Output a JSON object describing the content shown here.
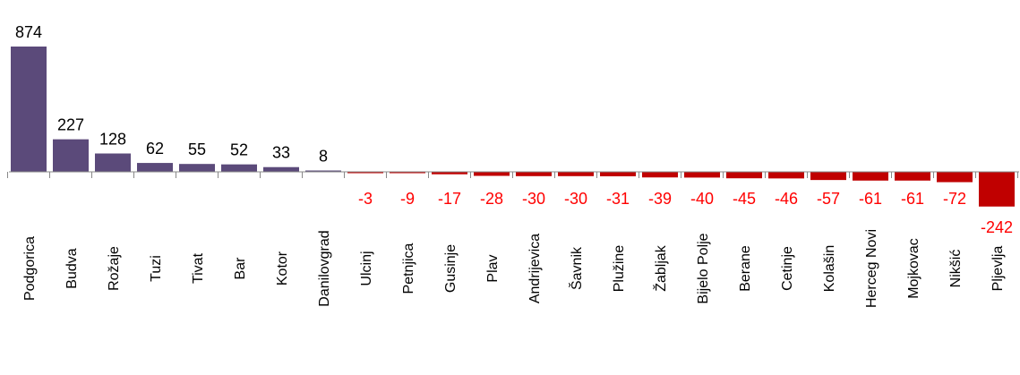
{
  "chart_data": {
    "type": "bar",
    "categories": [
      "Podgorica",
      "Budva",
      "Rožaje",
      "Tuzi",
      "Tivat",
      "Bar",
      "Kotor",
      "Danilovgrad",
      "Ulcinj",
      "Petnjica",
      "Gusinje",
      "Plav",
      "Andrijevica",
      "Šavnik",
      "Plužine",
      "Žabljak",
      "Bijelo Polje",
      "Berane",
      "Cetinje",
      "Kolašin",
      "Herceg Novi",
      "Mojkovac",
      "Nikšić",
      "Pljevlja"
    ],
    "values": [
      874,
      227,
      128,
      62,
      55,
      52,
      33,
      8,
      -3,
      -9,
      -17,
      -28,
      -30,
      -30,
      -31,
      -39,
      -40,
      -45,
      -46,
      -57,
      -61,
      -61,
      -72,
      -242
    ],
    "data_labels": [
      "874",
      "227",
      "128",
      "62",
      "55",
      "52",
      "33",
      "8",
      "-3",
      "-9",
      "-17",
      "-28",
      "-30",
      "-30",
      "-31",
      "-39",
      "-40",
      "-45",
      "-46",
      "-57",
      "-61",
      "-61",
      "-72",
      "-242"
    ],
    "title": "",
    "xlabel": "",
    "ylabel": "",
    "grid": false,
    "legend": "none",
    "colors": {
      "positive_bar": "#5b4a7a",
      "negative_bar": "#c00000",
      "positive_label": "#000000",
      "negative_label": "#ff0000",
      "axis": "#888888"
    }
  }
}
